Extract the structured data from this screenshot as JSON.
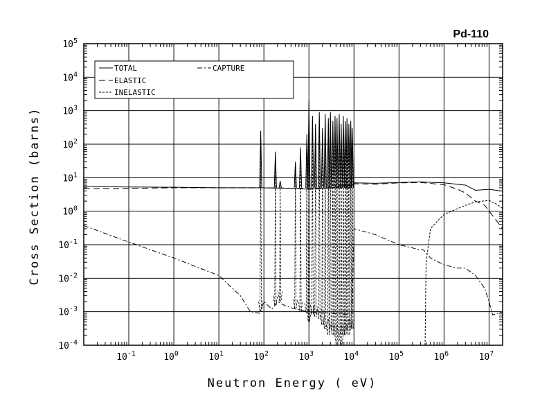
{
  "chart_data": {
    "type": "line",
    "title": "Pd-110",
    "xlabel": "Neutron Energy ( eV)",
    "ylabel": "Cross Section (barns)",
    "xscale": "log",
    "yscale": "log",
    "xlim": [
      0.01,
      20000000
    ],
    "ylim": [
      0.0001,
      100000
    ],
    "grid": true,
    "legend_position": "top-left",
    "x_ticks": [
      {
        "base": "10",
        "exp": "-1",
        "value": 0.1
      },
      {
        "base": "10",
        "exp": "0",
        "value": 1
      },
      {
        "base": "10",
        "exp": "1",
        "value": 10
      },
      {
        "base": "10",
        "exp": "2",
        "value": 100
      },
      {
        "base": "10",
        "exp": "3",
        "value": 1000
      },
      {
        "base": "10",
        "exp": "4",
        "value": 10000
      },
      {
        "base": "10",
        "exp": "5",
        "value": 100000
      },
      {
        "base": "10",
        "exp": "6",
        "value": 1000000
      },
      {
        "base": "10",
        "exp": "7",
        "value": 10000000
      }
    ],
    "y_ticks": [
      {
        "base": "10",
        "exp": "-4",
        "value": 0.0001
      },
      {
        "base": "10",
        "exp": "-3",
        "value": 0.001
      },
      {
        "base": "10",
        "exp": "-2",
        "value": 0.01
      },
      {
        "base": "10",
        "exp": "-1",
        "value": 0.1
      },
      {
        "base": "10",
        "exp": "0",
        "value": 1
      },
      {
        "base": "10",
        "exp": "1",
        "value": 10
      },
      {
        "base": "10",
        "exp": "2",
        "value": 100
      },
      {
        "base": "10",
        "exp": "3",
        "value": 1000
      },
      {
        "base": "10",
        "exp": "4",
        "value": 10000
      },
      {
        "base": "10",
        "exp": "5",
        "value": 100000
      }
    ],
    "series": [
      {
        "name": "TOTAL",
        "dash": "solid",
        "x": [
          0.01,
          0.1,
          1,
          10,
          80,
          600,
          1000,
          3000,
          9000,
          10000,
          30000,
          100000,
          300000,
          1000000,
          3000000,
          5000000,
          10000000,
          20000000
        ],
        "y": [
          5.5,
          5.3,
          5.2,
          5.0,
          5.0,
          4.8,
          4.5,
          5,
          6,
          7,
          6.8,
          7.2,
          7.5,
          7,
          6,
          4.2,
          4.5,
          4.0
        ]
      },
      {
        "name": "ELASTIC",
        "dash": "long-dash",
        "x": [
          0.01,
          0.1,
          1,
          10,
          80,
          1000,
          9000,
          10000,
          30000,
          100000,
          300000,
          1000000,
          2000000,
          3000000,
          5000000,
          8000000,
          20000000
        ],
        "y": [
          4.7,
          4.8,
          5.0,
          5.0,
          5.0,
          4.8,
          5,
          6.6,
          6.4,
          7.0,
          7.2,
          6.2,
          4.5,
          3.5,
          2.0,
          1.5,
          0.3
        ]
      },
      {
        "name": "INELASTIC",
        "dash": "short-dash",
        "x": [
          380000,
          400000,
          500000,
          800000,
          1000000,
          2000000,
          3000000,
          5000000,
          10000000,
          15000000,
          20000000
        ],
        "y": [
          0.0001,
          0.03,
          0.3,
          0.6,
          0.8,
          1.2,
          1.5,
          1.9,
          2.1,
          1.6,
          1.2
        ]
      },
      {
        "name": "CAPTURE",
        "dash": "dash-dot",
        "x": [
          0.01,
          0.1,
          1,
          10,
          30,
          50,
          80,
          100,
          150,
          200,
          300,
          500,
          1000,
          3000,
          9000,
          10000,
          30000,
          100000,
          300000,
          350000,
          500000,
          1000000,
          2000000,
          3000000,
          5000000,
          8000000,
          10000000,
          12000000,
          20000000
        ],
        "y": [
          0.37,
          0.12,
          0.04,
          0.012,
          0.003,
          0.001,
          0.0009,
          0.002,
          0.0012,
          0.002,
          0.0015,
          0.0012,
          0.001,
          0.0009,
          0.0008,
          0.3,
          0.2,
          0.1,
          0.07,
          0.07,
          0.04,
          0.025,
          0.02,
          0.02,
          0.012,
          0.005,
          0.002,
          0.0008,
          0.001
        ]
      }
    ],
    "resonances": {
      "description_free": true,
      "peaks": [
        {
          "x": 85,
          "top": 250,
          "base": 0.001
        },
        {
          "x": 180,
          "top": 60,
          "base": 0.0015
        },
        {
          "x": 230,
          "top": 8,
          "base": 0.002
        },
        {
          "x": 500,
          "top": 30,
          "base": 0.0012
        },
        {
          "x": 650,
          "top": 80,
          "base": 0.001
        },
        {
          "x": 900,
          "top": 200,
          "base": 0.0009
        },
        {
          "x": 1000,
          "top": 2000,
          "base": 0.0005
        },
        {
          "x": 1200,
          "top": 700,
          "base": 0.0008
        },
        {
          "x": 1400,
          "top": 400,
          "base": 0.0007
        },
        {
          "x": 1700,
          "top": 900,
          "base": 0.0006
        },
        {
          "x": 2000,
          "top": 300,
          "base": 0.0004
        },
        {
          "x": 2300,
          "top": 800,
          "base": 0.0003
        },
        {
          "x": 2700,
          "top": 600,
          "base": 0.0002
        },
        {
          "x": 3000,
          "top": 900,
          "base": 0.0003
        },
        {
          "x": 3400,
          "top": 500,
          "base": 0.0002
        },
        {
          "x": 3800,
          "top": 700,
          "base": 0.0002
        },
        {
          "x": 4200,
          "top": 600,
          "base": 0.0001
        },
        {
          "x": 4700,
          "top": 800,
          "base": 0.0002
        },
        {
          "x": 5200,
          "top": 400,
          "base": 0.0001
        },
        {
          "x": 5800,
          "top": 700,
          "base": 0.0002
        },
        {
          "x": 6400,
          "top": 500,
          "base": 0.0002
        },
        {
          "x": 7000,
          "top": 600,
          "base": 0.0003
        },
        {
          "x": 7700,
          "top": 400,
          "base": 0.0002
        },
        {
          "x": 8500,
          "top": 500,
          "base": 0.0003
        },
        {
          "x": 9200,
          "top": 300,
          "base": 0.0003
        }
      ]
    }
  },
  "legend": {
    "items": [
      {
        "label": "TOTAL",
        "dash": "solid"
      },
      {
        "label": "CAPTURE",
        "dash": "dash-dot"
      },
      {
        "label": "ELASTIC",
        "dash": "long-dash"
      },
      {
        "label": "INELASTIC",
        "dash": "short-dash"
      }
    ]
  }
}
